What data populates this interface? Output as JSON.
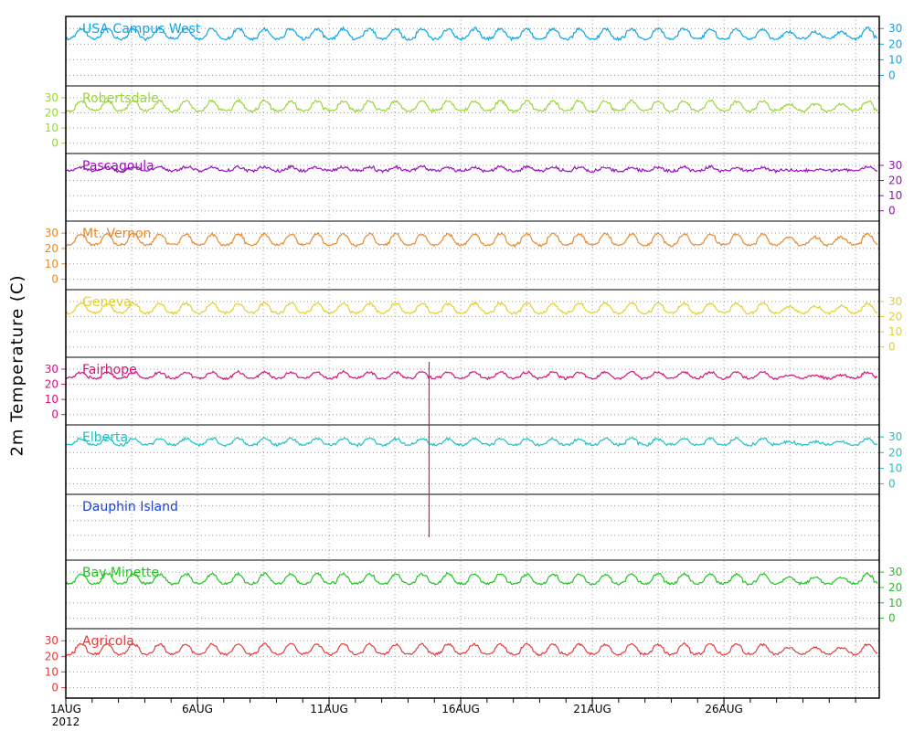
{
  "chart_data": {
    "type": "line",
    "ylabel": "2m Temperature (C)",
    "x_ticks": [
      "1AUG",
      "6AUG",
      "11AUG",
      "16AUG",
      "21AUG",
      "26AUG"
    ],
    "x_tick_days": [
      1,
      6,
      11,
      16,
      21,
      26
    ],
    "x_year": "2012",
    "xlim": [
      "2012-08-01",
      "2012-08-31"
    ],
    "ylim": [
      -5,
      36
    ],
    "y_ticks": [
      0,
      10,
      20,
      30
    ],
    "grid": true,
    "series": [
      {
        "name": "USA Campus West",
        "color": "#0ea5e9",
        "axis": "right",
        "base": 25,
        "amp": 8,
        "noise": 1.6,
        "values": [],
        "has_data": true
      },
      {
        "name": "Robertsdale",
        "color": "#9ad63a",
        "axis": "left",
        "base": 23,
        "amp": 8,
        "noise": 1.5,
        "values": [],
        "has_data": true
      },
      {
        "name": "Pascagoula",
        "color": "#9a0fbf",
        "axis": "right",
        "base": 27,
        "amp": 3,
        "noise": 1.6,
        "values": [],
        "has_data": true
      },
      {
        "name": "Mt. Vernon",
        "color": "#e68a2e",
        "axis": "left",
        "base": 24,
        "amp": 9,
        "noise": 1.2,
        "values": [],
        "has_data": true
      },
      {
        "name": "Geneva",
        "color": "#e2d02a",
        "axis": "right",
        "base": 24,
        "amp": 8,
        "noise": 1.2,
        "values": [],
        "has_data": true
      },
      {
        "name": "Fairhope",
        "color": "#d4157a",
        "axis": "left",
        "base": 25,
        "amp": 5,
        "noise": 1.2,
        "values": [],
        "has_data": true
      },
      {
        "name": "Elberta",
        "color": "#1fc0c4",
        "axis": "right",
        "base": 26,
        "amp": 5,
        "noise": 1.3,
        "values": [],
        "has_data": true
      },
      {
        "name": "Dauphin Island",
        "color": "#1a44d6",
        "axis": "none",
        "base": 0,
        "amp": 0,
        "noise": 0,
        "values": [],
        "has_data": false
      },
      {
        "name": "Bay Minette",
        "color": "#1fc41f",
        "axis": "right",
        "base": 24,
        "amp": 8,
        "noise": 1.3,
        "values": [],
        "has_data": true
      },
      {
        "name": "Agricola",
        "color": "#e23c3c",
        "axis": "left",
        "base": 23,
        "amp": 8,
        "noise": 1.1,
        "values": [],
        "has_data": true
      }
    ]
  }
}
